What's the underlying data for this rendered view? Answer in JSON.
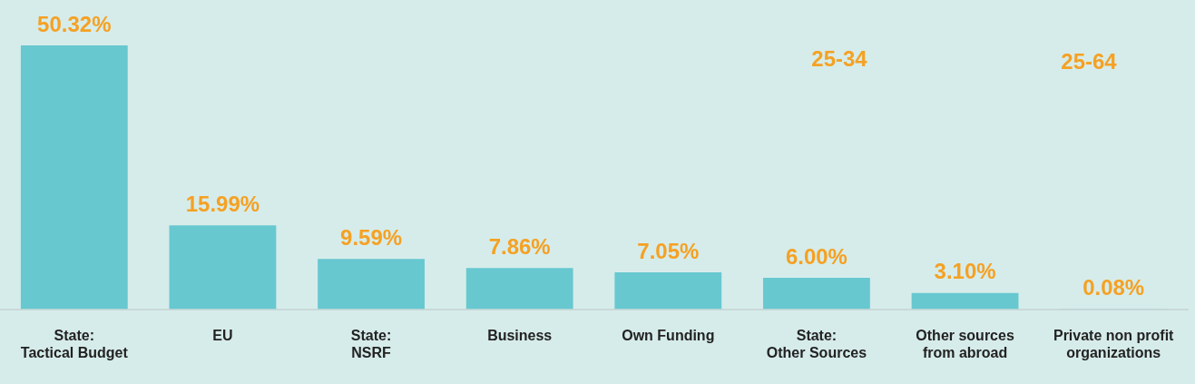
{
  "chart_data": {
    "type": "bar",
    "categories": [
      "State:\nTactical Budget",
      "EU",
      "State:\nNSRF",
      "Business",
      "Own Funding",
      "State:\nOther Sources",
      "Other sources\nfrom abroad",
      "Private non profit\norganizations"
    ],
    "values": [
      50.32,
      15.99,
      9.59,
      7.86,
      7.05,
      6.0,
      3.1,
      0.08
    ],
    "value_labels": [
      "50.32%",
      "15.99%",
      "9.59%",
      "7.86%",
      "7.05%",
      "6.00%",
      "3.10%",
      "0.08%"
    ],
    "color": "#67c8d0",
    "grid": false,
    "annotations": [
      "25-34",
      "25-64"
    ]
  }
}
